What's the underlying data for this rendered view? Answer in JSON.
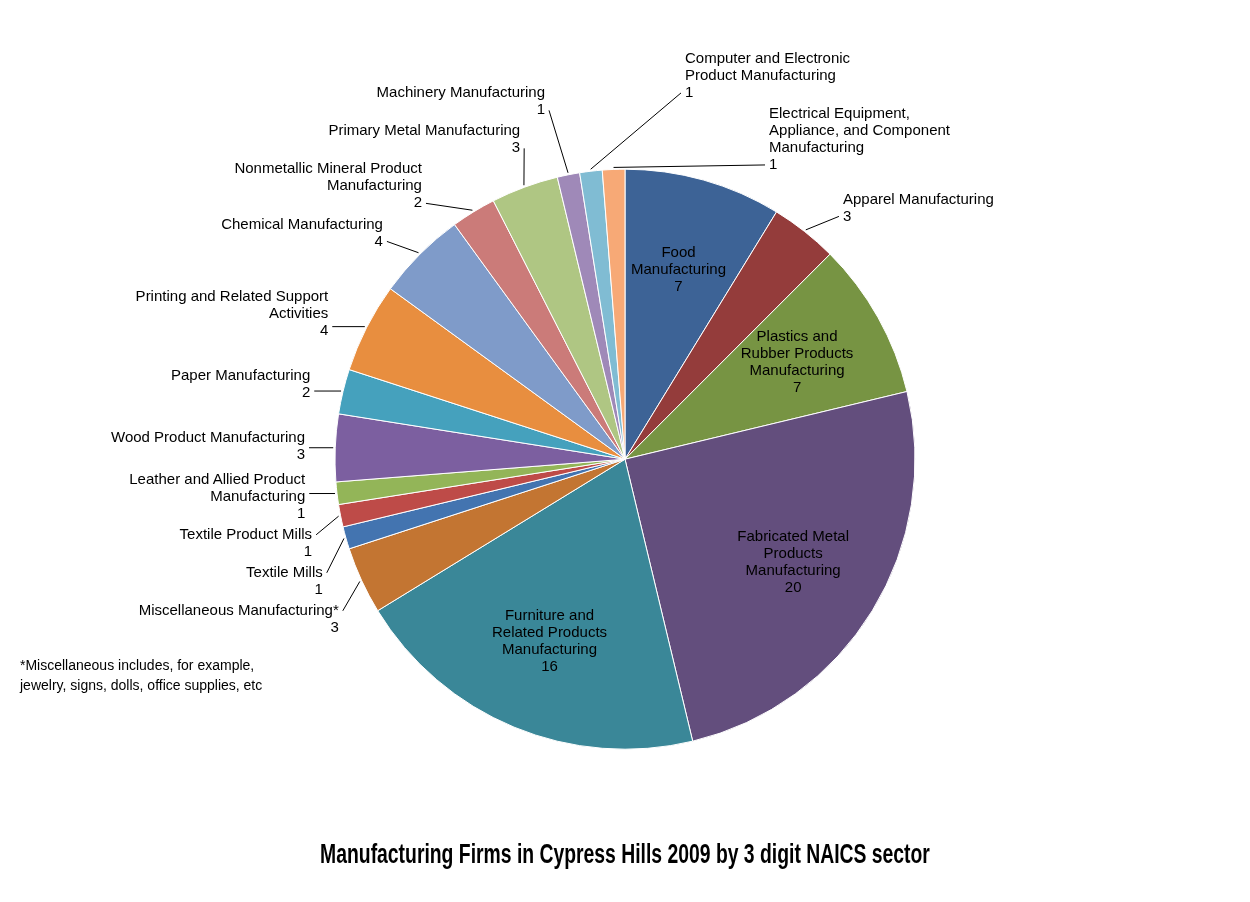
{
  "chart_data": {
    "type": "pie",
    "title": "Manufacturing Firms in Cypress Hills 2009 by 3 digit NAICS sector",
    "categories": [
      "Food Manufacturing",
      "Apparel Manufacturing",
      "Plastics and Rubber Products Manufacturing",
      "Fabricated Metal Products Manufacturing",
      "Furniture and Related Products Manufacturing",
      "Miscellaneous Manufacturing*",
      "Textile Mills",
      "Textile Product Mills",
      "Leather and Allied Product Manufacturing",
      "Wood Product Manufacturing",
      "Paper Manufacturing",
      "Printing and Related Support Activities",
      "Chemical Manufacturing",
      "Nonmetallic Mineral Product Manufacturing",
      "Primary Metal Manufacturing",
      "Machinery Manufacturing",
      "Computer and Electronic Product Manufacturing",
      "Electrical Equipment, Appliance, and Component Manufacturing"
    ],
    "values": [
      7,
      3,
      7,
      20,
      16,
      3,
      1,
      1,
      1,
      3,
      2,
      4,
      4,
      2,
      3,
      1,
      1,
      1
    ],
    "colors": [
      "#3d6396",
      "#943c3b",
      "#779443",
      "#634e7d",
      "#3a8798",
      "#c37532",
      "#4374b0",
      "#be4b48",
      "#93b558",
      "#7c5fa0",
      "#45a1bd",
      "#e88e3f",
      "#7f9bc9",
      "#cb7b79",
      "#afc683",
      "#9f89b8",
      "#80bcd3",
      "#f7a976"
    ],
    "data_labels": true,
    "annotations": [
      "*Miscellaneous includes, for example, jewelry, signs, dolls, office supplies, etc"
    ]
  }
}
